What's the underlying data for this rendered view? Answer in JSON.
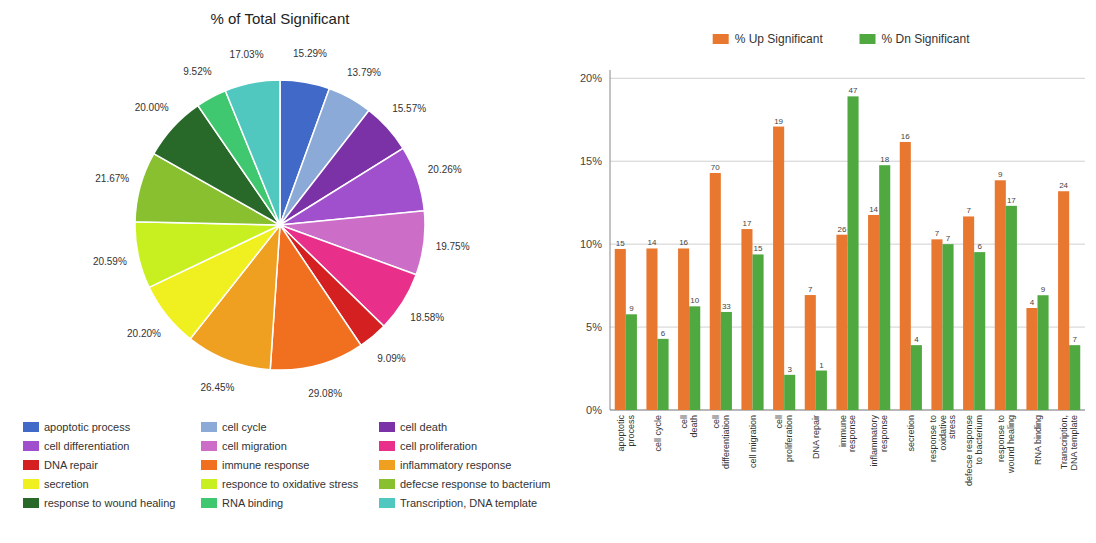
{
  "chart_data": [
    {
      "type": "pie",
      "title": "% of Total Significant",
      "categories": [
        "apoptotic process",
        "cell cycle",
        "cell death",
        "cell differentiation",
        "cell migration",
        "cell proliferation",
        "DNA repair",
        "immune response",
        "inflammatory response",
        "secretion",
        "responce to oxidative stress",
        "defecse response to bacterium",
        "response to wound healing",
        "RNA binding",
        "Transcription, DNA template"
      ],
      "values": [
        15.29,
        13.79,
        15.57,
        20.26,
        19.75,
        18.58,
        9.09,
        29.08,
        26.45,
        20.2,
        20.59,
        21.67,
        20.0,
        9.52,
        17.03
      ],
      "value_labels": [
        "15.29%",
        "13.79%",
        "15.57%",
        "20.26%",
        "19.75%",
        "18.58%",
        "9.09%",
        "29.08%",
        "26.45%",
        "20.20%",
        "20.59%",
        "21.67%",
        "20.00%",
        "9.52%",
        "17.03%"
      ],
      "colors": [
        "#4169C8",
        "#8BAAD8",
        "#7B32A6",
        "#A050CC",
        "#CC6EC8",
        "#E8308A",
        "#D42020",
        "#F07020",
        "#F0A020",
        "#F0F020",
        "#C8F020",
        "#88C030",
        "#286828",
        "#40C870",
        "#50C8C0"
      ],
      "data_labels": true,
      "legend": "bottom"
    },
    {
      "type": "bar",
      "categories": [
        "apoptotic\nprocess",
        "cell cycle",
        "cell\ndeath",
        "cell\ndifferentiation",
        "cell migration",
        "cell\nproliferation",
        "DNA repair",
        "immune\nresponse",
        "inflammatory\nresponse",
        "secretion",
        "response to\noxidative\nstress",
        "defecse response\nto bacterium",
        "response to\nwound healing",
        "RNA binding",
        "Transcription,\nDNA template"
      ],
      "series": [
        {
          "name": "% Up Significant",
          "color": "#E87830",
          "values": [
            9.71,
            9.74,
            9.74,
            14.29,
            10.91,
            17.09,
            6.93,
            10.57,
            11.76,
            16.16,
            10.29,
            11.67,
            13.85,
            6.15,
            13.19
          ],
          "counts": [
            15,
            14,
            16,
            70,
            17,
            19,
            7,
            26,
            14,
            16,
            7,
            7,
            9,
            4,
            24
          ]
        },
        {
          "name": "% Dn Significant",
          "color": "#50A840",
          "values": [
            5.77,
            4.29,
            6.25,
            5.91,
            9.38,
            2.12,
            2.38,
            18.91,
            14.76,
            3.91,
            10.0,
            9.52,
            12.31,
            6.92,
            3.91
          ],
          "counts": [
            9,
            6,
            10,
            33,
            15,
            3,
            1,
            47,
            18,
            4,
            7,
            6,
            17,
            9,
            7
          ]
        }
      ],
      "ylim": [
        0,
        20.5
      ],
      "yticks": [
        {
          "value": 0,
          "label": "0%"
        },
        {
          "value": 5,
          "label": "5%"
        },
        {
          "value": 10,
          "label": "10%"
        },
        {
          "value": 15,
          "label": "15%"
        },
        {
          "value": 20,
          "label": "20%"
        }
      ],
      "grid": true,
      "legend": "top"
    }
  ]
}
